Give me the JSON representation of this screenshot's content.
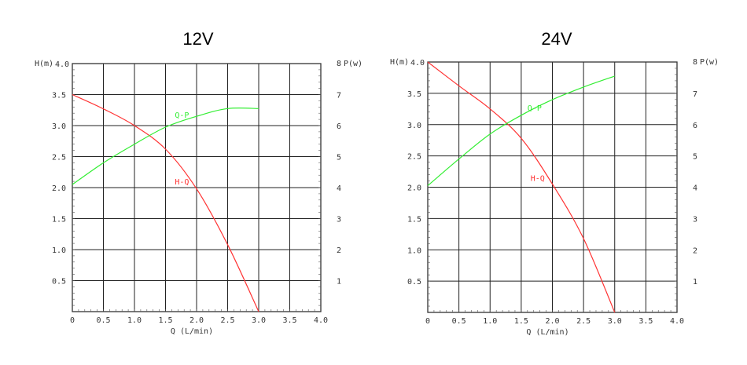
{
  "chart_data": [
    {
      "type": "line",
      "title": "12V",
      "xlabel": "Q (L/min)",
      "ylabel": "H(m)",
      "y2label": "P(w)",
      "y2label_prefix": "8",
      "xlim": [
        0,
        4.0
      ],
      "ylim": [
        0,
        4.0
      ],
      "y2lim": [
        0,
        8
      ],
      "x_ticks": [
        "0",
        "0.5",
        "1.0",
        "1.5",
        "2.0",
        "2.5",
        "3.0",
        "3.5",
        "4.0"
      ],
      "y_ticks": [
        "0.5",
        "1.0",
        "1.5",
        "2.0",
        "2.5",
        "3.0",
        "3.5",
        "4.0"
      ],
      "y2_ticks": [
        "1",
        "2",
        "3",
        "4",
        "5",
        "6",
        "7"
      ],
      "grid": true,
      "colors": {
        "H-Q": "#ff3333",
        "Q-P": "#33ee33"
      },
      "series": [
        {
          "name": "H-Q",
          "axis": "left",
          "label_at": [
            1.65,
            2.1
          ],
          "x": [
            0,
            0.5,
            1.0,
            1.5,
            2.0,
            2.5,
            3.0
          ],
          "y": [
            3.5,
            3.27,
            3.0,
            2.62,
            1.98,
            1.08,
            0.0
          ]
        },
        {
          "name": "Q-P",
          "axis": "right",
          "label_at": [
            1.65,
            6.35
          ],
          "x": [
            0,
            0.5,
            1.0,
            1.5,
            2.0,
            2.5,
            3.0
          ],
          "y": [
            4.1,
            4.8,
            5.4,
            5.95,
            6.3,
            6.55,
            6.55
          ]
        }
      ]
    },
    {
      "type": "line",
      "title": "24V",
      "xlabel": "Q (L/min)",
      "ylabel": "H(m)",
      "y2label": "P(w)",
      "y2label_prefix": "8",
      "xlim": [
        0,
        4.0
      ],
      "ylim": [
        0,
        4.0
      ],
      "y2lim": [
        0,
        8
      ],
      "x_ticks": [
        "0",
        "0.5",
        "1.0",
        "1.5",
        "2.0",
        "2.5",
        "3.0",
        "3.5",
        "4.0"
      ],
      "y_ticks": [
        "0.5",
        "1.0",
        "1.5",
        "2.0",
        "2.5",
        "3.0",
        "3.5",
        "4.0"
      ],
      "y2_ticks": [
        "1",
        "2",
        "3",
        "4",
        "5",
        "6",
        "7"
      ],
      "grid": true,
      "colors": {
        "H-Q": "#ff3333",
        "Q-P": "#33ee33"
      },
      "series": [
        {
          "name": "H-Q",
          "axis": "left",
          "label_at": [
            1.65,
            2.15
          ],
          "x": [
            0,
            0.5,
            1.0,
            1.5,
            2.0,
            2.5,
            3.0
          ],
          "y": [
            4.0,
            3.62,
            3.25,
            2.78,
            2.05,
            1.18,
            0.0
          ]
        },
        {
          "name": "Q-P",
          "axis": "right",
          "label_at": [
            1.6,
            6.55
          ],
          "x": [
            0,
            0.5,
            1.0,
            1.5,
            2.0,
            2.5,
            3.0
          ],
          "y": [
            4.05,
            4.9,
            5.7,
            6.3,
            6.8,
            7.2,
            7.55
          ]
        }
      ]
    }
  ]
}
